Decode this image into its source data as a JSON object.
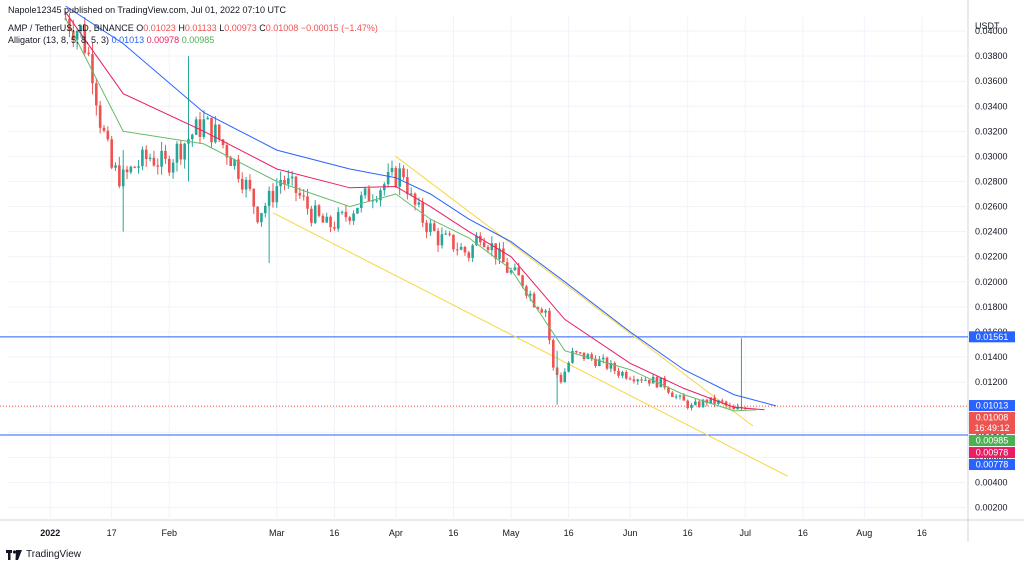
{
  "header": {
    "publisher": "Napole12345 published on TradingView.com, Jul 01, 2022 07:10 UTC",
    "symbol": "AMP / TetherUS, 1D, BINANCE",
    "ohlc": {
      "o_label": "O",
      "o": "0.01023",
      "h_label": "H",
      "h": "0.01133",
      "l_label": "L",
      "l": "0.00973",
      "c_label": "C",
      "c": "0.01008",
      "change": "−0.00015 (−1.47%)"
    },
    "indicator": {
      "name": "Alligator (13, 8, 5, 8, 5, 3)",
      "jaw": "0.01013",
      "teeth": "0.00978",
      "lips": "0.00985"
    }
  },
  "footer": {
    "brand": "TradingView"
  },
  "colors": {
    "up": "#26a69a",
    "down": "#ef5350",
    "jaw": "#2962ff",
    "teeth": "#e91e63",
    "lips": "#66bb6a",
    "channel": "#f5d742",
    "hline": "#2962ff",
    "grid": "#f0f3fa",
    "axis_text": "#131722"
  },
  "chart_data": {
    "type": "candlestick",
    "title": "AMP / TetherUS, 1D, BINANCE",
    "currency": "USDT",
    "ylim": [
      0.001,
      0.0412
    ],
    "y_ticks": [
      "0.04000",
      "0.03800",
      "0.03600",
      "0.03400",
      "0.03200",
      "0.03000",
      "0.02800",
      "0.02600",
      "0.02400",
      "0.02200",
      "0.02000",
      "0.01800",
      "0.01600",
      "0.01400",
      "0.01200",
      "0.01000",
      "0.00800",
      "0.00600",
      "0.00400",
      "0.00200"
    ],
    "x_ticks": [
      {
        "label": "2022",
        "date": "2022-01-01",
        "bold": true
      },
      {
        "label": "17",
        "date": "2022-01-17"
      },
      {
        "label": "Feb",
        "date": "2022-02-01"
      },
      {
        "label": "Mar",
        "date": "2022-03-01"
      },
      {
        "label": "16",
        "date": "2022-03-16"
      },
      {
        "label": "Apr",
        "date": "2022-04-01"
      },
      {
        "label": "16",
        "date": "2022-04-16"
      },
      {
        "label": "May",
        "date": "2022-05-01"
      },
      {
        "label": "16",
        "date": "2022-05-16"
      },
      {
        "label": "Jun",
        "date": "2022-06-01"
      },
      {
        "label": "16",
        "date": "2022-06-16"
      },
      {
        "label": "Jul",
        "date": "2022-07-01"
      },
      {
        "label": "16",
        "date": "2022-07-16"
      },
      {
        "label": "Aug",
        "date": "2022-08-01"
      },
      {
        "label": "16",
        "date": "2022-08-16"
      }
    ],
    "x_range": [
      "2021-12-21",
      "2022-08-28"
    ],
    "price_anchors": [
      [
        "2022-01-05",
        0.041
      ],
      [
        "2022-01-09",
        0.04
      ],
      [
        "2022-01-12",
        0.037
      ],
      [
        "2022-01-14",
        0.033
      ],
      [
        "2022-01-17",
        0.029
      ],
      [
        "2022-01-20",
        0.0282
      ],
      [
        "2022-01-23",
        0.0292
      ],
      [
        "2022-01-27",
        0.03
      ],
      [
        "2022-01-31",
        0.0293
      ],
      [
        "2022-02-03",
        0.0305
      ],
      [
        "2022-02-07",
        0.0318
      ],
      [
        "2022-02-10",
        0.0326
      ],
      [
        "2022-02-13",
        0.0318
      ],
      [
        "2022-02-16",
        0.0305
      ],
      [
        "2022-02-19",
        0.029
      ],
      [
        "2022-02-22",
        0.027
      ],
      [
        "2022-02-24",
        0.0255
      ],
      [
        "2022-02-27",
        0.0265
      ],
      [
        "2022-03-02",
        0.0282
      ],
      [
        "2022-03-06",
        0.0272
      ],
      [
        "2022-03-10",
        0.0255
      ],
      [
        "2022-03-14",
        0.0244
      ],
      [
        "2022-03-18",
        0.025
      ],
      [
        "2022-03-22",
        0.0262
      ],
      [
        "2022-03-26",
        0.0272
      ],
      [
        "2022-03-30",
        0.028
      ],
      [
        "2022-04-03",
        0.0288
      ],
      [
        "2022-04-05",
        0.0265
      ],
      [
        "2022-04-08",
        0.025
      ],
      [
        "2022-04-12",
        0.0235
      ],
      [
        "2022-04-16",
        0.023
      ],
      [
        "2022-04-20",
        0.0222
      ],
      [
        "2022-04-23",
        0.024
      ],
      [
        "2022-04-26",
        0.0228
      ],
      [
        "2022-04-30",
        0.021
      ],
      [
        "2022-05-04",
        0.02
      ],
      [
        "2022-05-07",
        0.0185
      ],
      [
        "2022-05-10",
        0.0178
      ],
      [
        "2022-05-12",
        0.013
      ],
      [
        "2022-05-14",
        0.0122
      ],
      [
        "2022-05-17",
        0.0142
      ],
      [
        "2022-05-21",
        0.014
      ],
      [
        "2022-05-25",
        0.0135
      ],
      [
        "2022-05-29",
        0.0128
      ],
      [
        "2022-06-02",
        0.0125
      ],
      [
        "2022-06-06",
        0.0122
      ],
      [
        "2022-06-10",
        0.0118
      ],
      [
        "2022-06-13",
        0.0108
      ],
      [
        "2022-06-17",
        0.01
      ],
      [
        "2022-06-21",
        0.0105
      ],
      [
        "2022-06-25",
        0.0103
      ],
      [
        "2022-06-28",
        0.0097
      ],
      [
        "2022-07-01",
        0.0101
      ]
    ],
    "wicks": [
      {
        "date": "2022-01-20",
        "high": 0.0305,
        "low": 0.024
      },
      {
        "date": "2022-02-06",
        "high": 0.038,
        "low": 0.028
      },
      {
        "date": "2022-02-27",
        "high": 0.026,
        "low": 0.0215
      },
      {
        "date": "2022-05-13",
        "high": 0.0145,
        "low": 0.0102
      },
      {
        "date": "2022-06-30",
        "high": 0.0155,
        "low": 0.0097
      }
    ],
    "series": [
      {
        "name": "Jaw",
        "values": [
          [
            "2022-01-05",
            0.042
          ],
          [
            "2022-01-20",
            0.039
          ],
          [
            "2022-02-10",
            0.0335
          ],
          [
            "2022-03-01",
            0.0305
          ],
          [
            "2022-03-20",
            0.029
          ],
          [
            "2022-04-01",
            0.0283
          ],
          [
            "2022-04-10",
            0.027
          ],
          [
            "2022-04-20",
            0.025
          ],
          [
            "2022-05-01",
            0.0232
          ],
          [
            "2022-05-15",
            0.02
          ],
          [
            "2022-06-01",
            0.016
          ],
          [
            "2022-06-15",
            0.013
          ],
          [
            "2022-06-28",
            0.011
          ],
          [
            "2022-07-09",
            0.0101
          ]
        ]
      },
      {
        "name": "Teeth",
        "values": [
          [
            "2022-01-05",
            0.0415
          ],
          [
            "2022-01-20",
            0.035
          ],
          [
            "2022-02-10",
            0.032
          ],
          [
            "2022-03-01",
            0.029
          ],
          [
            "2022-03-20",
            0.0275
          ],
          [
            "2022-04-01",
            0.0276
          ],
          [
            "2022-04-10",
            0.026
          ],
          [
            "2022-04-20",
            0.024
          ],
          [
            "2022-05-01",
            0.022
          ],
          [
            "2022-05-15",
            0.017
          ],
          [
            "2022-06-01",
            0.0135
          ],
          [
            "2022-06-15",
            0.0115
          ],
          [
            "2022-06-28",
            0.01
          ],
          [
            "2022-07-06",
            0.0098
          ]
        ]
      },
      {
        "name": "Lips",
        "values": [
          [
            "2022-01-05",
            0.041
          ],
          [
            "2022-01-20",
            0.032
          ],
          [
            "2022-02-10",
            0.031
          ],
          [
            "2022-03-01",
            0.028
          ],
          [
            "2022-03-20",
            0.026
          ],
          [
            "2022-04-01",
            0.027
          ],
          [
            "2022-04-10",
            0.025
          ],
          [
            "2022-04-20",
            0.0235
          ],
          [
            "2022-05-01",
            0.021
          ],
          [
            "2022-05-15",
            0.0145
          ],
          [
            "2022-06-01",
            0.013
          ],
          [
            "2022-06-15",
            0.011
          ],
          [
            "2022-06-28",
            0.0097
          ],
          [
            "2022-07-04",
            0.0098
          ]
        ]
      }
    ],
    "trend_lines": [
      {
        "name": "channel-upper",
        "from": [
          "2022-04-01",
          0.03
        ],
        "to": [
          "2022-07-03",
          0.0085
        ]
      },
      {
        "name": "channel-lower",
        "from": [
          "2022-02-28",
          0.0255
        ],
        "to": [
          "2022-07-12",
          0.0045
        ]
      }
    ],
    "horizontal_lines": [
      {
        "value": 0.01561,
        "label": "0.01561",
        "color": "#2962ff"
      },
      {
        "value": 0.00778,
        "label": "0.00778",
        "color": "#2962ff"
      }
    ],
    "last_price_line": {
      "value": 0.01008
    },
    "price_labels": [
      {
        "value": 0.01013,
        "label": "0.01013",
        "bg": "#2962ff"
      },
      {
        "value": 0.01008,
        "label": "0.01008",
        "sub": "16:49:12",
        "bg": "#ef5350"
      },
      {
        "value": 0.00985,
        "label": "0.00985",
        "bg": "#4caf50"
      },
      {
        "value": 0.00978,
        "label": "0.00978",
        "bg": "#e91e63"
      }
    ]
  }
}
